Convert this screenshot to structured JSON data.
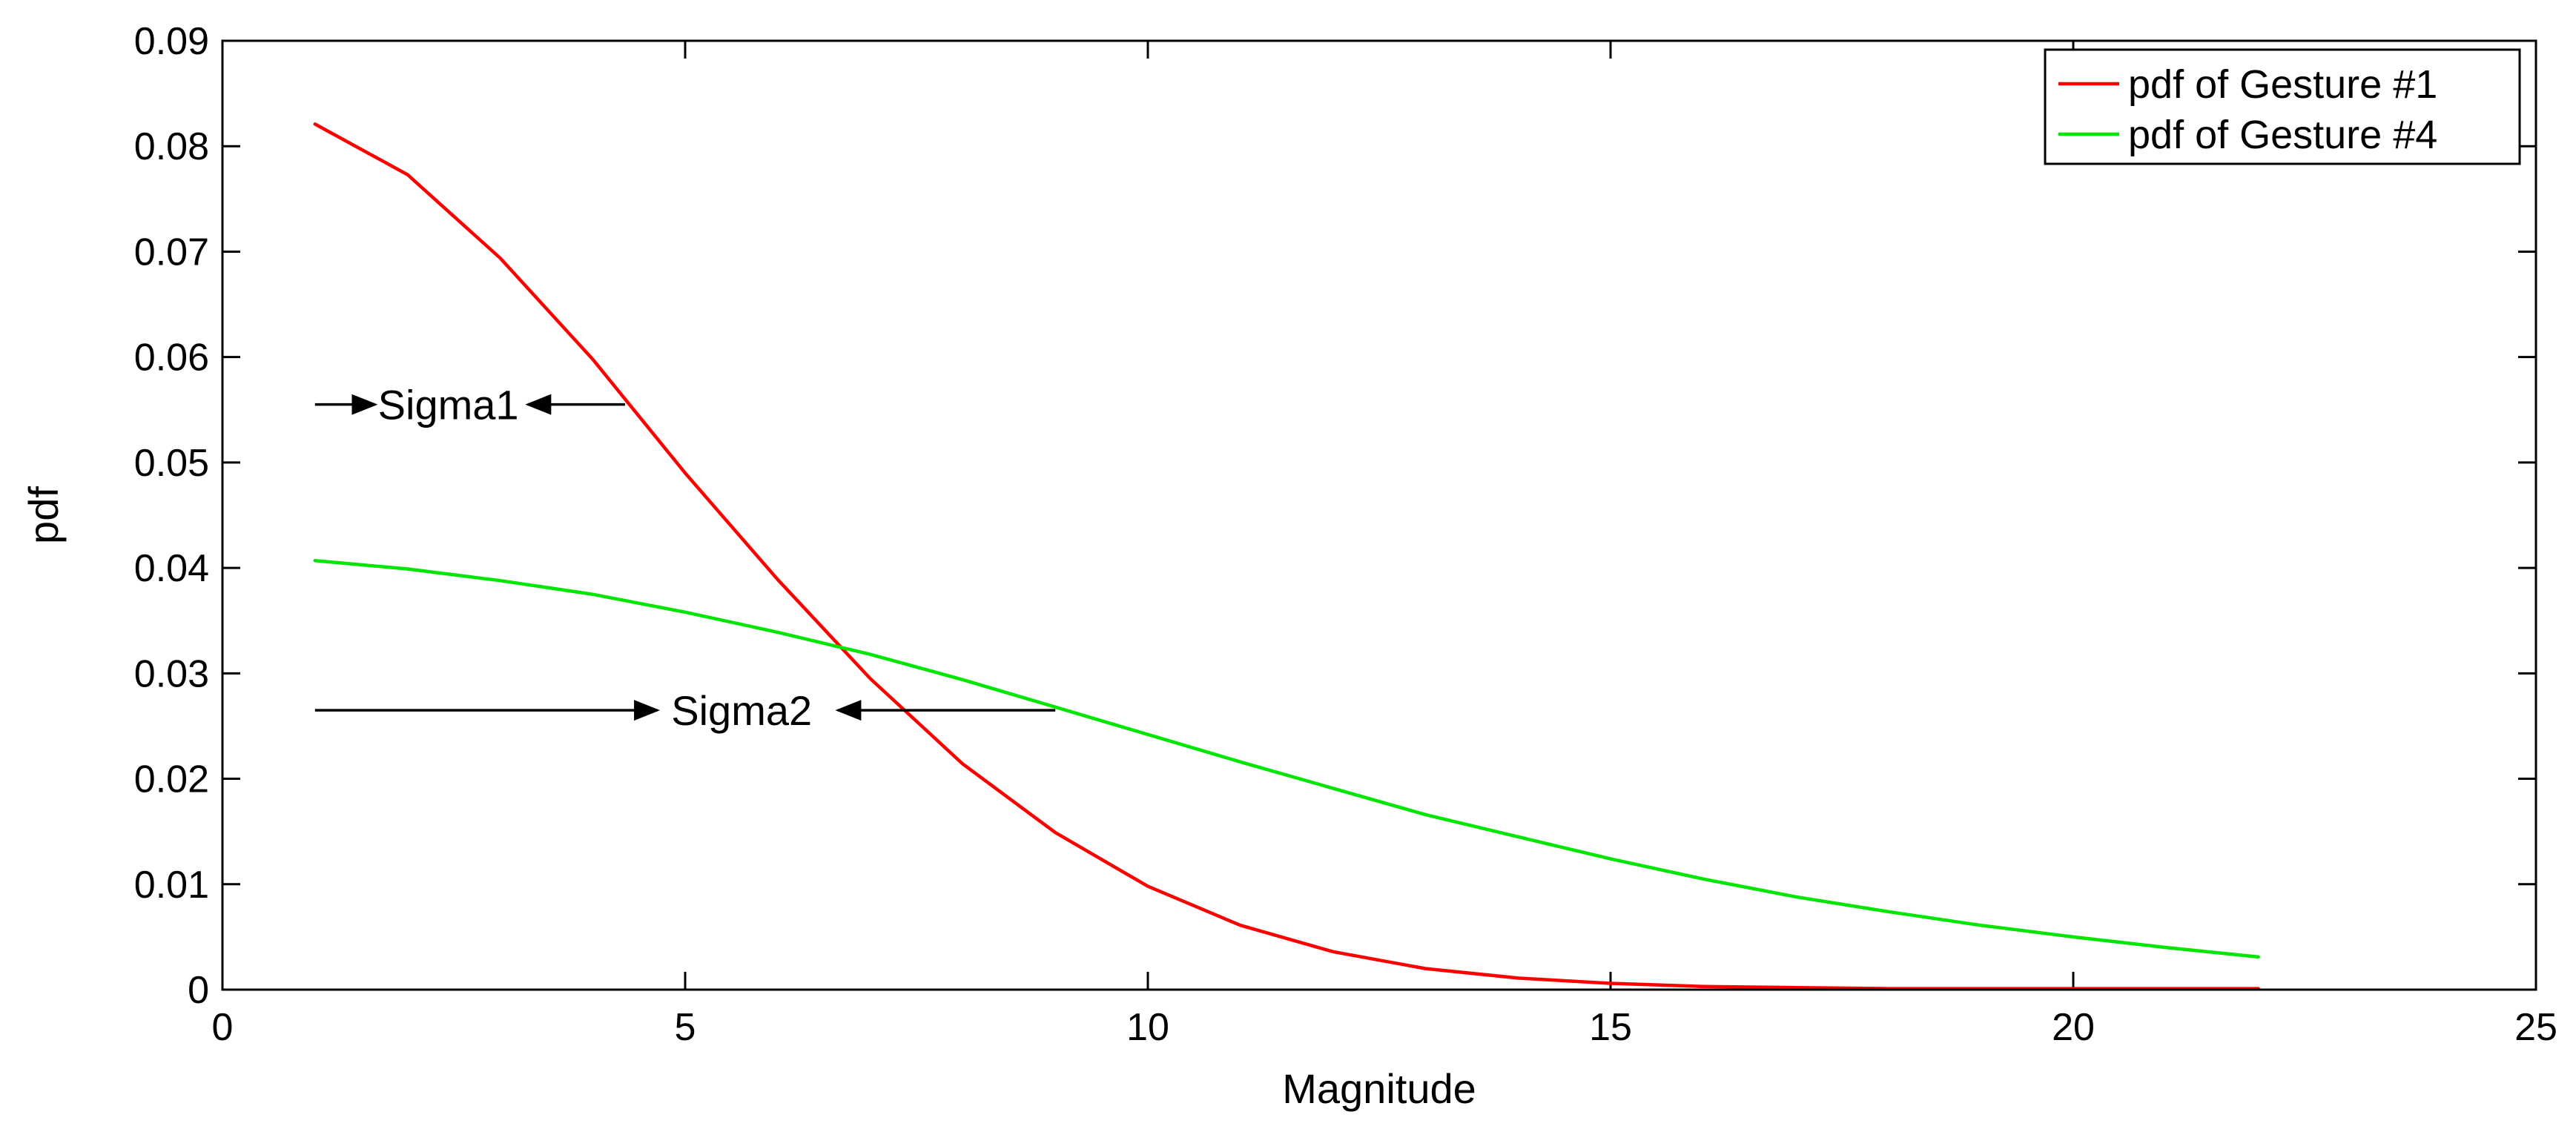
{
  "chart_data": {
    "type": "line",
    "title": "",
    "xlabel": "Magnitude",
    "ylabel": "pdf",
    "xlim": [
      0,
      25
    ],
    "ylim": [
      0,
      0.09
    ],
    "xticks": [
      0,
      5,
      10,
      15,
      20,
      25
    ],
    "xtick_labels": [
      "0",
      "5",
      "10",
      "15",
      "20",
      "25"
    ],
    "yticks": [
      0,
      0.01,
      0.02,
      0.03,
      0.04,
      0.05,
      0.06,
      0.07,
      0.08,
      0.09
    ],
    "ytick_labels": [
      "0",
      "0.01",
      "0.02",
      "0.03",
      "0.04",
      "0.05",
      "0.06",
      "0.07",
      "0.08",
      "0.09"
    ],
    "grid": false,
    "legend_position": "top-right",
    "x": [
      1,
      2,
      3,
      4,
      5,
      6,
      7,
      8,
      9,
      10,
      11,
      12,
      13,
      14,
      15,
      16,
      17,
      18,
      19,
      20,
      21,
      22
    ],
    "series": [
      {
        "name": "pdf of Gesture #1",
        "color": "#ff0000",
        "values": [
          0.0821,
          0.0773,
          0.0694,
          0.0598,
          0.049,
          0.0389,
          0.0295,
          0.0214,
          0.0149,
          0.0098,
          0.0061,
          0.0036,
          0.002,
          0.0011,
          0.0006,
          0.0003,
          0.0002,
          0.0001,
          0.0001,
          0.0001,
          0.0001,
          0.0001
        ]
      },
      {
        "name": "pdf of Gesture #4",
        "color": "#00e600",
        "values": [
          0.0407,
          0.0399,
          0.0388,
          0.0375,
          0.0358,
          0.0339,
          0.0318,
          0.0294,
          0.0268,
          0.0242,
          0.0216,
          0.0191,
          0.0166,
          0.0145,
          0.0124,
          0.0105,
          0.0088,
          0.0074,
          0.0061,
          0.005,
          0.004,
          0.0031
        ]
      }
    ],
    "annotations": [
      {
        "text": "Sigma1",
        "y": 0.0555,
        "x_left_arrow": [
          1.0,
          1.65
        ],
        "x_right_arrow": [
          4.35,
          3.3
        ],
        "text_x": 1.68
      },
      {
        "text": "Sigma2",
        "y": 0.0265,
        "x_left_arrow": [
          1.0,
          4.7
        ],
        "x_right_arrow": [
          9.0,
          6.65
        ],
        "text_x": 4.85
      }
    ]
  }
}
